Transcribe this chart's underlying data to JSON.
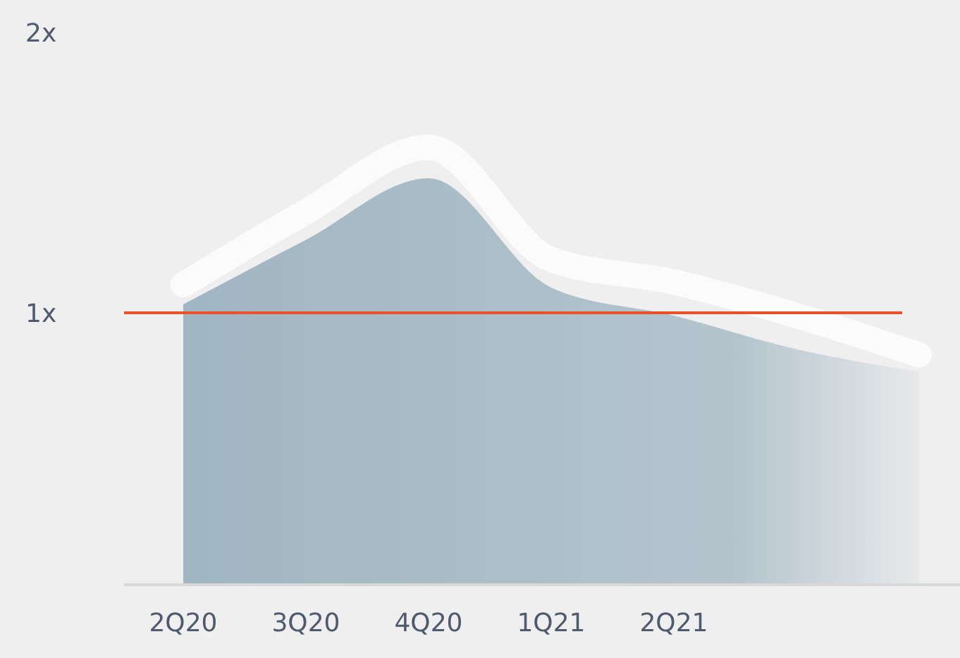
{
  "chart_data": {
    "type": "area",
    "categories": [
      "2Q20",
      "3Q20",
      "4Q20",
      "1Q21",
      "2Q21",
      null,
      null
    ],
    "series": [
      {
        "color": "#a0b6c2",
        "values": [
          1.03,
          1.26,
          1.48,
          1.09,
          0.99,
          0.87,
          0.79
        ]
      },
      {
        "type": "line",
        "color": "#fbfbfb",
        "values": [
          1.1,
          1.36,
          1.59,
          1.19,
          1.11,
          0.99,
          0.85
        ]
      }
    ],
    "ylim": [
      0.03,
      2
    ],
    "yticks": [
      {
        "value": 1,
        "label": "1x"
      },
      {
        "value": 2,
        "label": "2x"
      }
    ],
    "ref_lines": [
      {
        "axis": "y",
        "value": 1,
        "color": "#e8522a"
      }
    ]
  }
}
